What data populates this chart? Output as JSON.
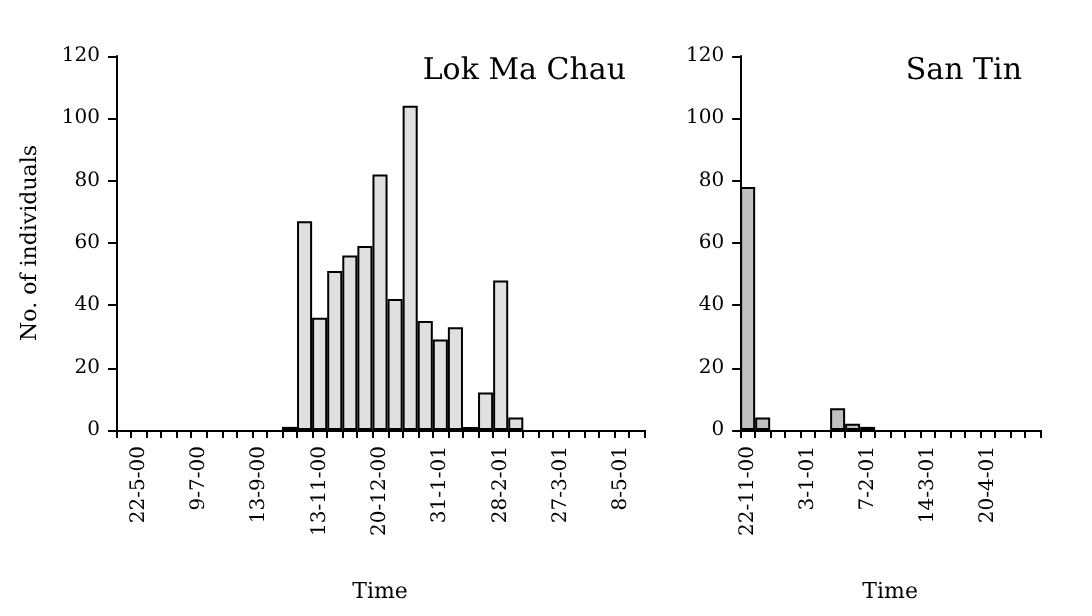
{
  "chart_data": [
    {
      "type": "bar",
      "title": "Lok Ma Chau",
      "xlabel": "Time",
      "ylabel": "No. of individuals",
      "categories": [
        null,
        "22-5-00",
        null,
        null,
        null,
        "9-7-00",
        null,
        null,
        null,
        "13-9-00",
        null,
        null,
        null,
        "13-11-00",
        null,
        null,
        null,
        "20-12-00",
        null,
        null,
        null,
        "31-1-01",
        null,
        null,
        null,
        "28-2-01",
        null,
        null,
        null,
        "27-3-01",
        null,
        null,
        null,
        "8-5-01",
        null
      ],
      "values": [
        0,
        0,
        0,
        0,
        0,
        0,
        0,
        0,
        0,
        0,
        0,
        1,
        67,
        36,
        51,
        56,
        59,
        82,
        42,
        104,
        35,
        29,
        33,
        1,
        12,
        48,
        4,
        0,
        0,
        0,
        0,
        0,
        0,
        0,
        0
      ],
      "color": "#e0e0e0",
      "ylim": [
        0,
        120
      ],
      "yticks": [
        0,
        20,
        40,
        60,
        80,
        100,
        120
      ],
      "grid": false
    },
    {
      "type": "bar",
      "title": "San Tin",
      "xlabel": "Time",
      "categories": [
        "22-11-00",
        null,
        null,
        null,
        "3-1-01",
        null,
        null,
        null,
        "7-2-01",
        null,
        null,
        null,
        "14-3-01",
        null,
        null,
        null,
        "20-4-01",
        null,
        null,
        null
      ],
      "values": [
        78,
        4,
        0,
        0,
        0,
        0,
        7,
        2,
        1,
        0,
        0,
        0,
        0,
        0,
        0,
        0,
        0,
        0,
        0,
        0
      ],
      "color": "#c0c0c0",
      "ylim": [
        0,
        120
      ],
      "yticks": [
        0,
        20,
        40,
        60,
        80,
        100,
        120
      ],
      "grid": false
    }
  ]
}
